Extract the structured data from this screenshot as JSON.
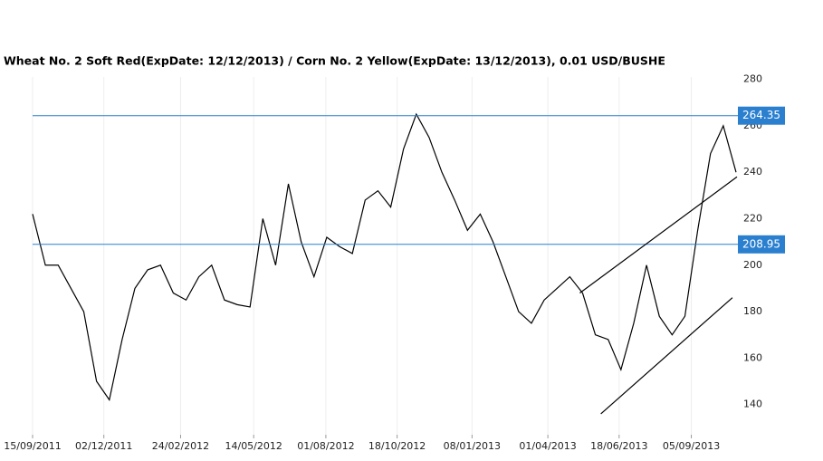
{
  "chart_data": {
    "type": "line",
    "title": "Wheat  No. 2 Soft Red(ExpDate: 12/12/2013) / Corn  No. 2 Yellow(ExpDate: 13/12/2013), 0.01 USD/BUSHE",
    "x": [
      "15/09/2011",
      "29/09/2011",
      "13/10/2011",
      "27/10/2011",
      "10/11/2011",
      "24/11/2011",
      "08/12/2011",
      "22/12/2011",
      "05/01/2012",
      "19/01/2012",
      "02/02/2012",
      "16/02/2012",
      "01/03/2012",
      "15/03/2012",
      "29/03/2012",
      "12/04/2012",
      "26/04/2012",
      "10/05/2012",
      "24/05/2012",
      "07/06/2012",
      "21/06/2012",
      "05/07/2012",
      "19/07/2012",
      "02/08/2012",
      "16/08/2012",
      "30/08/2012",
      "13/09/2012",
      "27/09/2012",
      "11/10/2012",
      "25/10/2012",
      "08/11/2012",
      "22/11/2012",
      "06/12/2012",
      "20/12/2012",
      "03/01/2013",
      "17/01/2013",
      "31/01/2013",
      "14/02/2013",
      "28/02/2013",
      "14/03/2013",
      "28/03/2013",
      "11/04/2013",
      "25/04/2013",
      "09/05/2013",
      "23/05/2013",
      "06/06/2013",
      "20/06/2013",
      "04/07/2013",
      "18/07/2013",
      "01/08/2013",
      "15/08/2013",
      "29/08/2013",
      "12/09/2013",
      "26/09/2013",
      "10/10/2013",
      "24/10/2013"
    ],
    "series": [
      {
        "name": "Wheat  No. 2 Soft Red / Corn  No. 2 Yellow",
        "color": "#000000",
        "values": [
          222,
          200,
          200,
          190,
          180,
          150,
          142,
          168,
          190,
          198,
          200,
          188,
          185,
          195,
          200,
          185,
          183,
          182,
          220,
          200,
          235,
          210,
          195,
          212,
          208,
          205,
          228,
          232,
          225,
          250,
          265,
          255,
          240,
          228,
          215,
          222,
          210,
          195,
          180,
          175,
          185,
          190,
          195,
          188,
          170,
          168,
          155,
          175,
          200,
          178,
          170,
          178,
          215,
          248,
          260,
          240
        ]
      }
    ],
    "xlim": [
      "15/09/2011",
      "26/10/2013"
    ],
    "xticks": [
      "15/09/2011",
      "02/12/2011",
      "24/02/2012",
      "14/05/2012",
      "01/08/2012",
      "18/10/2012",
      "08/01/2013",
      "01/04/2013",
      "18/06/2013",
      "05/09/2013"
    ],
    "ylim": [
      127,
      281
    ],
    "yticks": [
      140,
      160,
      180,
      200,
      220,
      240,
      260,
      280
    ],
    "levels": [
      264.35,
      208.95
    ],
    "level_color": "#2a7fcf",
    "trend_lines": [
      {
        "x": [
          "06/05/2013",
          "25/10/2013"
        ],
        "y": [
          188,
          238
        ]
      },
      {
        "x": [
          "29/05/2013",
          "20/10/2013"
        ],
        "y": [
          136,
          186
        ]
      }
    ],
    "grid": true
  }
}
